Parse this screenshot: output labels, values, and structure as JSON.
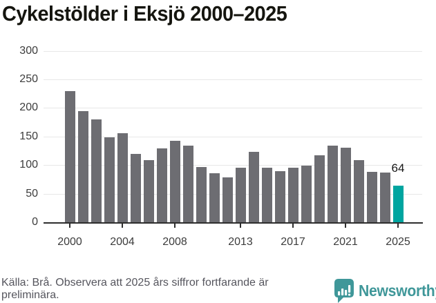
{
  "title": "Cykelstölder i Eksjö 2000–2025",
  "chart_data": {
    "type": "bar",
    "title": "Cykelstölder i Eksjö 2000–2025",
    "years": [
      2000,
      2001,
      2002,
      2003,
      2004,
      2005,
      2006,
      2007,
      2008,
      2009,
      2010,
      2011,
      2012,
      2013,
      2014,
      2015,
      2016,
      2017,
      2018,
      2019,
      2020,
      2021,
      2022,
      2023,
      2024,
      2025
    ],
    "values": [
      230,
      195,
      180,
      148,
      156,
      120,
      109,
      129,
      142,
      134,
      97,
      86,
      78,
      95,
      123,
      95,
      89,
      95,
      99,
      117,
      134,
      131,
      109,
      88,
      87,
      64
    ],
    "highlight": {
      "year": 2025,
      "value": 64,
      "label": "64"
    },
    "y_ticks": [
      0,
      50,
      100,
      150,
      200,
      250,
      300
    ],
    "x_tick_years": [
      2000,
      2004,
      2008,
      2013,
      2017,
      2021,
      2025
    ],
    "ylim": [
      0,
      300
    ],
    "grid": "horizontal",
    "legend": false,
    "colors": {
      "bar": "#6d6d72",
      "highlight": "#00a5a0",
      "grid": "#e7e7e7",
      "axis": "#2d2d2d",
      "tick_label": "#3c3c3c",
      "value_label": "#161616"
    }
  },
  "footer": {
    "source_lines": [
      "Källa: Brå. Observera att 2025 års siffror fortfarande är",
      "preliminära."
    ],
    "brand": {
      "name": "Newsworthy",
      "icon": "newsworthy-speech-bubble-bars-icon",
      "color": "#3f9799"
    }
  }
}
